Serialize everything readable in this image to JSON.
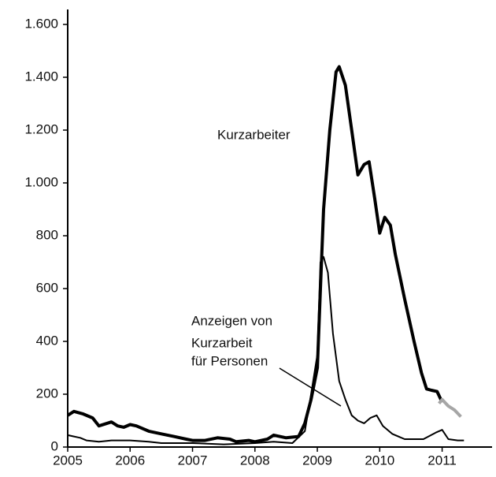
{
  "chart_data": {
    "type": "line",
    "xlim": [
      2005,
      2011.8
    ],
    "xticks": [
      2005,
      2006,
      2007,
      2008,
      2009,
      2010,
      2011
    ],
    "ylim": [
      0,
      1600
    ],
    "yticks": [
      0,
      200,
      400,
      600,
      800,
      {
        "value": 1000,
        "label": "1.000"
      },
      {
        "value": 1200,
        "label": "1.200"
      },
      {
        "value": 1400,
        "label": "1.400"
      },
      {
        "value": 1600,
        "label": "1.600"
      }
    ],
    "grid": false,
    "series": [
      {
        "color": "#000000",
        "width": 4,
        "x": [
          2005.0,
          2005.1,
          2005.25,
          2005.4,
          2005.5,
          2005.7,
          2005.8,
          2005.9,
          2006.0,
          2006.1,
          2006.3,
          2006.5,
          2006.7,
          2006.9,
          2007.0,
          2007.2,
          2007.4,
          2007.6,
          2007.7,
          2007.9,
          2008.0,
          2008.2,
          2008.3,
          2008.5,
          2008.7,
          2008.8,
          2008.9,
          2009.0,
          2009.05,
          2009.1,
          2009.2,
          2009.3,
          2009.35,
          2009.45,
          2009.55,
          2009.65,
          2009.75,
          2009.83,
          2009.92,
          2010.0,
          2010.08,
          2010.17,
          2010.25,
          2010.4,
          2010.55,
          2010.67,
          2010.75,
          2010.83,
          2010.92,
          2011.0
        ],
        "values": [
          120,
          135,
          125,
          110,
          80,
          95,
          80,
          75,
          85,
          80,
          60,
          50,
          40,
          30,
          25,
          25,
          35,
          30,
          20,
          25,
          20,
          30,
          45,
          35,
          40,
          90,
          180,
          300,
          600,
          900,
          1200,
          1420,
          1440,
          1370,
          1200,
          1030,
          1070,
          1080,
          940,
          810,
          870,
          840,
          730,
          560,
          400,
          280,
          220,
          215,
          210,
          170
        ]
      },
      {
        "color": "#a6a6a6",
        "width": 4,
        "x": [
          2010.95,
          2011.0,
          2011.1,
          2011.2,
          2011.3
        ],
        "values": [
          165,
          180,
          155,
          140,
          115
        ]
      },
      {
        "color": "#000000",
        "width": 2,
        "x": [
          2005.0,
          2005.1,
          2005.2,
          2005.3,
          2005.5,
          2005.7,
          2006.0,
          2006.3,
          2006.5,
          2007.0,
          2007.5,
          2008.0,
          2008.3,
          2008.6,
          2008.8,
          2008.9,
          2009.0,
          2009.05,
          2009.1,
          2009.17,
          2009.25,
          2009.35,
          2009.45,
          2009.55,
          2009.65,
          2009.75,
          2009.85,
          2009.95,
          2010.05,
          2010.2,
          2010.4,
          2010.7,
          2010.9,
          2011.0,
          2011.1,
          2011.25,
          2011.35
        ],
        "values": [
          45,
          40,
          35,
          25,
          20,
          25,
          25,
          20,
          15,
          15,
          10,
          15,
          20,
          15,
          60,
          200,
          350,
          700,
          720,
          660,
          430,
          250,
          180,
          120,
          100,
          90,
          110,
          120,
          80,
          50,
          30,
          30,
          55,
          65,
          30,
          25,
          25
        ]
      }
    ],
    "annotations": [
      {
        "lines": [
          "Kurzarbeiter"
        ]
      },
      {
        "lines": [
          "Anzeigen von",
          "Kurzarbeit",
          "für Personen"
        ]
      }
    ]
  }
}
